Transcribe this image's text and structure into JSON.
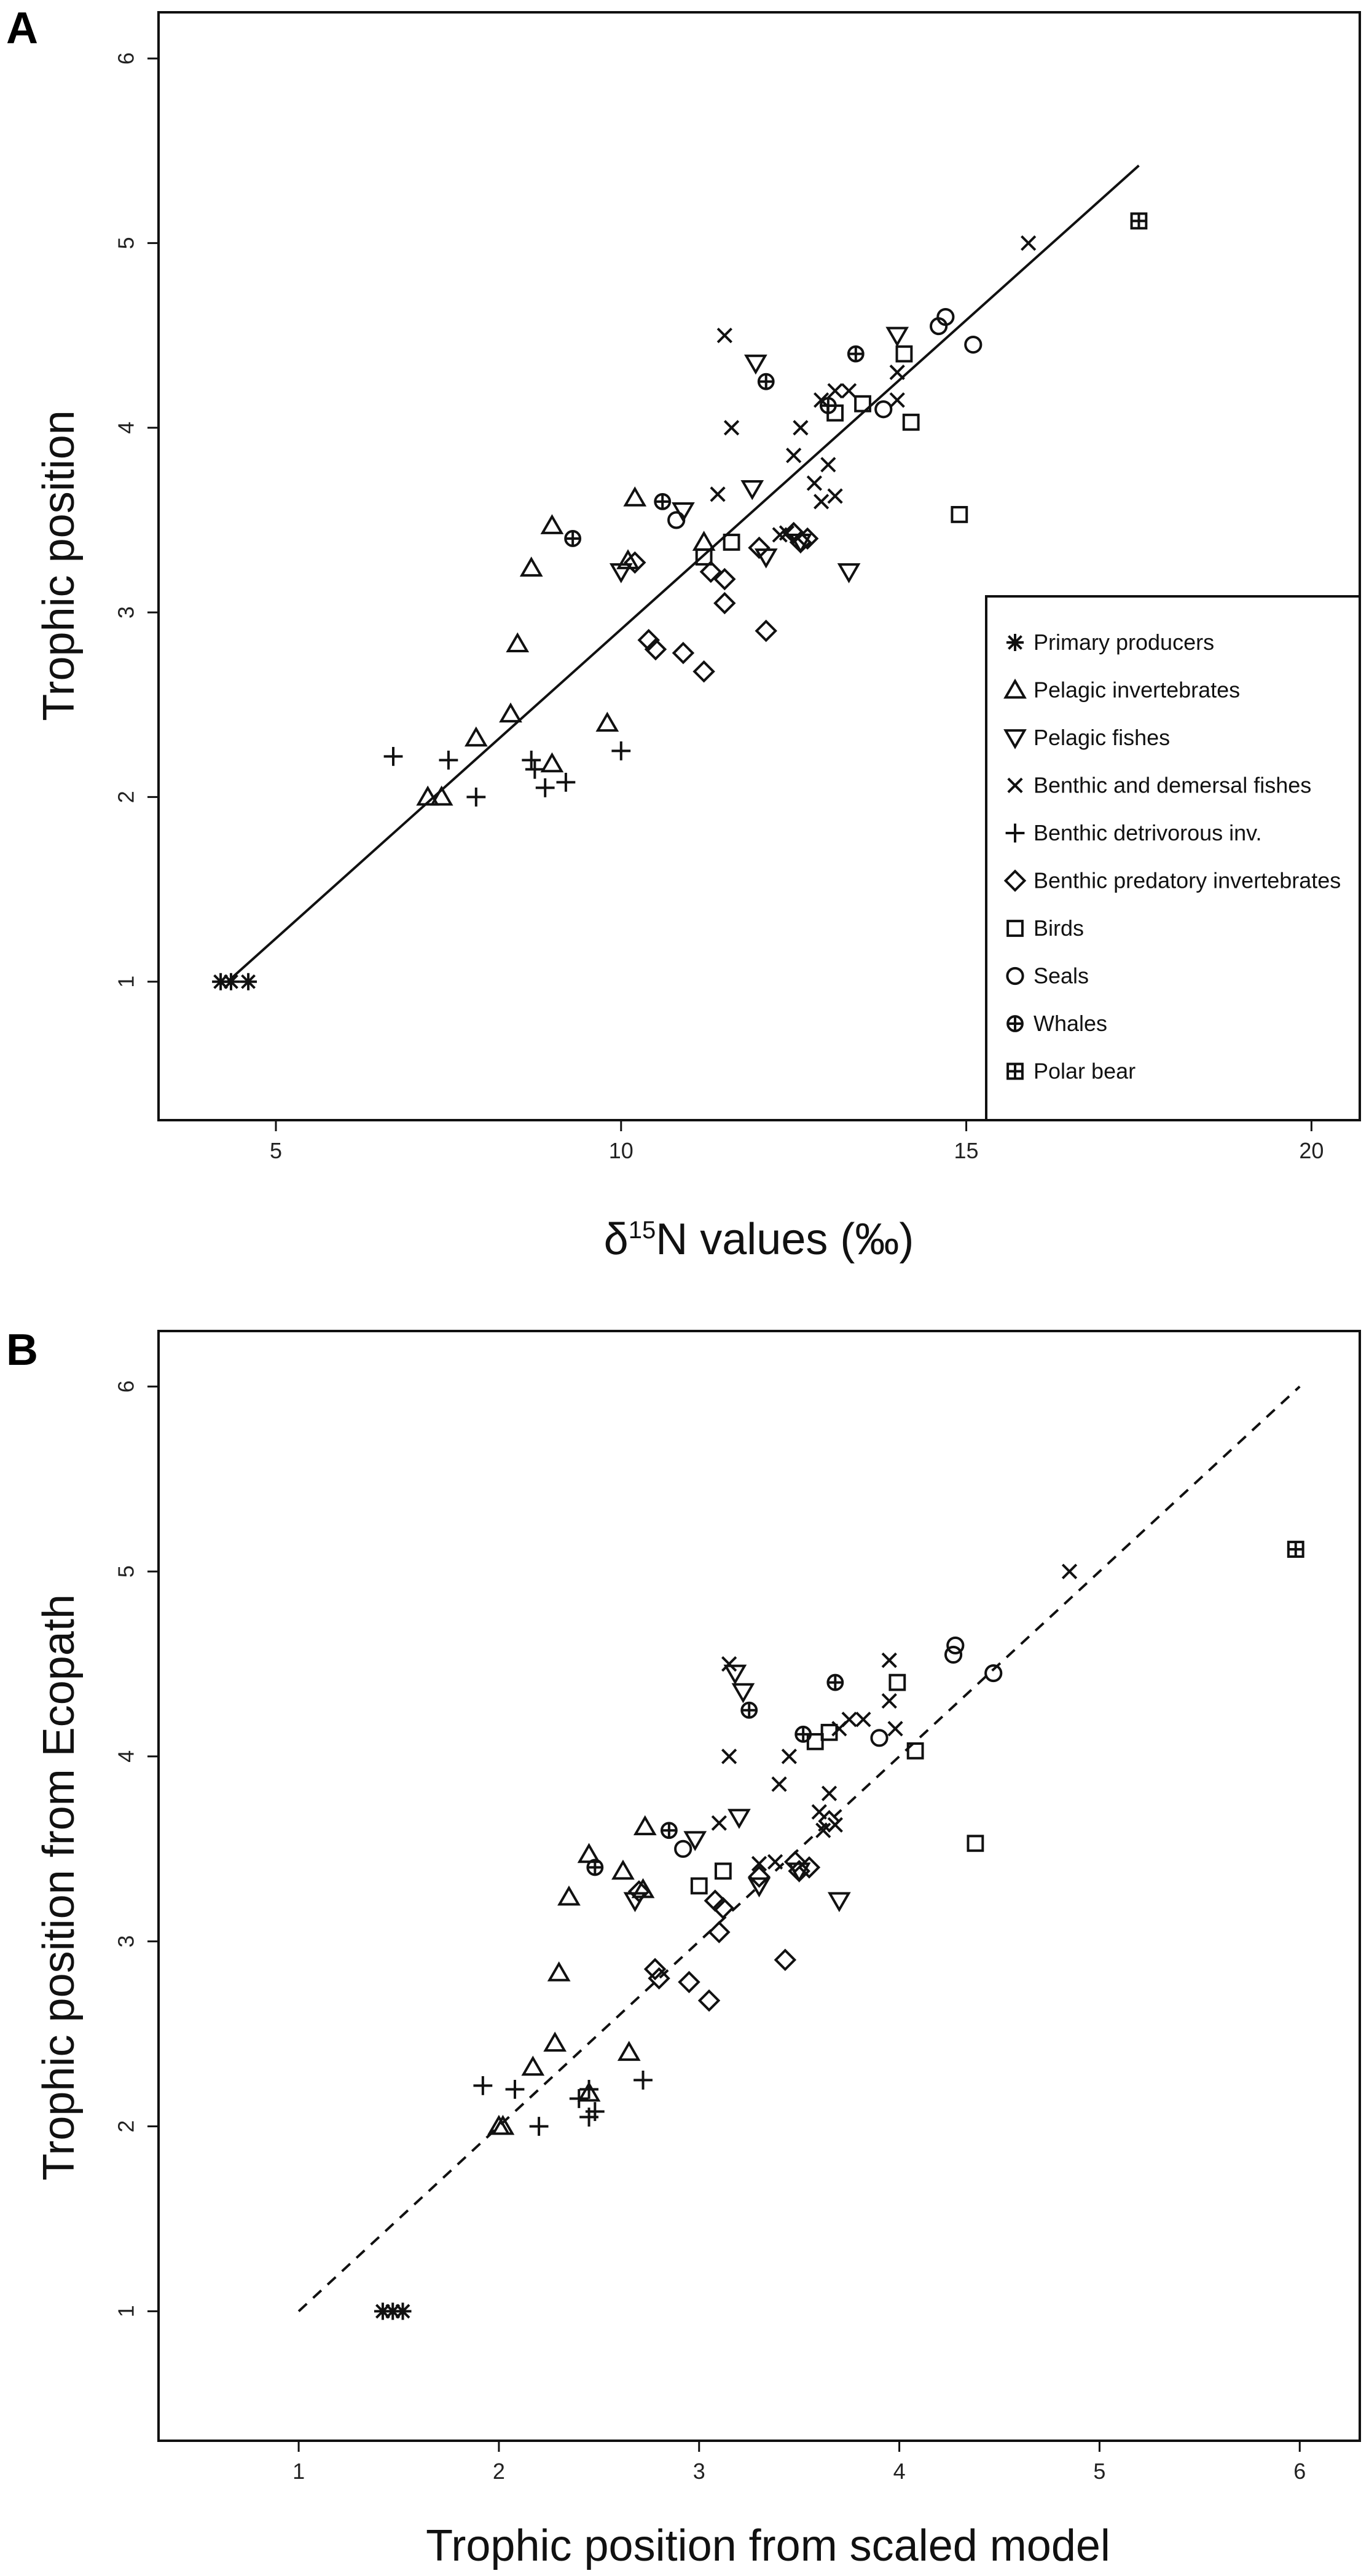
{
  "chart_data": [
    {
      "panel": "A",
      "type": "scatter",
      "xlabel_prefix": "δ",
      "xlabel_sup": "15",
      "xlabel_suffix": "N values (‰)",
      "ylabel": "Trophic position",
      "xlim": [
        3.3,
        20.7
      ],
      "ylim": [
        0.25,
        6.25
      ],
      "xticks": [
        5,
        10,
        15,
        20
      ],
      "yticks": [
        1,
        2,
        3,
        4,
        5,
        6
      ],
      "fit_line": {
        "style": "solid",
        "from": [
          4.3,
          1.0
        ],
        "to": [
          17.5,
          5.42
        ]
      },
      "legend_position": "bottom-right",
      "series": [
        {
          "name": "Primary producers",
          "marker": "asterisk",
          "points": [
            [
              4.2,
              1.0
            ],
            [
              4.35,
              1.0
            ],
            [
              4.6,
              1.0
            ]
          ]
        },
        {
          "name": "Pelagic invertebrates",
          "marker": "triangle",
          "points": [
            [
              7.2,
              2.0
            ],
            [
              7.4,
              2.0
            ],
            [
              7.9,
              2.32
            ],
            [
              8.4,
              2.45
            ],
            [
              8.5,
              2.83
            ],
            [
              8.7,
              3.24
            ],
            [
              9.0,
              3.47
            ],
            [
              9.8,
              2.4
            ],
            [
              9.0,
              2.18
            ],
            [
              10.2,
              3.62
            ],
            [
              10.1,
              3.28
            ],
            [
              11.2,
              3.38
            ]
          ]
        },
        {
          "name": "Pelagic fishes",
          "marker": "triangle-down",
          "points": [
            [
              10.0,
              3.22
            ],
            [
              10.9,
              3.55
            ],
            [
              11.9,
              3.67
            ],
            [
              11.95,
              4.35
            ],
            [
              12.6,
              3.38
            ],
            [
              13.3,
              3.22
            ],
            [
              14.0,
              4.5
            ],
            [
              12.1,
              3.3
            ]
          ]
        },
        {
          "name": "Benthic and demersal fishes",
          "marker": "x",
          "points": [
            [
              11.6,
              4.0
            ],
            [
              11.5,
              4.5
            ],
            [
              11.4,
              3.64
            ],
            [
              12.5,
              3.85
            ],
            [
              12.6,
              4.0
            ],
            [
              12.9,
              4.15
            ],
            [
              13.1,
              4.2
            ],
            [
              13.3,
              4.2
            ],
            [
              12.8,
              3.7
            ],
            [
              12.9,
              3.6
            ],
            [
              13.0,
              3.8
            ],
            [
              13.1,
              3.63
            ],
            [
              14.0,
              4.3
            ],
            [
              14.0,
              4.15
            ],
            [
              15.9,
              5.0
            ],
            [
              12.3,
              3.42
            ],
            [
              12.4,
              3.43
            ]
          ]
        },
        {
          "name": "Benthic detrivorous inv.",
          "marker": "plus",
          "points": [
            [
              6.7,
              2.22
            ],
            [
              7.5,
              2.2
            ],
            [
              7.9,
              2.0
            ],
            [
              8.7,
              2.2
            ],
            [
              8.75,
              2.15
            ],
            [
              8.9,
              2.05
            ],
            [
              9.2,
              2.08
            ],
            [
              10.0,
              2.25
            ]
          ]
        },
        {
          "name": "Benthic predatory invertebrates",
          "marker": "diamond",
          "points": [
            [
              10.4,
              2.85
            ],
            [
              10.5,
              2.8
            ],
            [
              10.9,
              2.78
            ],
            [
              11.2,
              2.68
            ],
            [
              11.3,
              3.22
            ],
            [
              11.5,
              3.05
            ],
            [
              11.5,
              3.18
            ],
            [
              12.0,
              3.35
            ],
            [
              12.1,
              2.9
            ],
            [
              12.5,
              3.43
            ],
            [
              12.6,
              3.38
            ],
            [
              12.7,
              3.4
            ],
            [
              10.2,
              3.27
            ]
          ]
        },
        {
          "name": "Birds",
          "marker": "square",
          "points": [
            [
              11.2,
              3.3
            ],
            [
              11.6,
              3.38
            ],
            [
              13.1,
              4.08
            ],
            [
              13.5,
              4.13
            ],
            [
              14.1,
              4.4
            ],
            [
              14.2,
              4.03
            ],
            [
              14.9,
              3.53
            ]
          ]
        },
        {
          "name": "Seals",
          "marker": "circle",
          "points": [
            [
              10.8,
              3.5
            ],
            [
              13.8,
              4.1
            ],
            [
              14.6,
              4.55
            ],
            [
              14.7,
              4.6
            ],
            [
              15.1,
              4.45
            ]
          ]
        },
        {
          "name": "Whales",
          "marker": "circle-plus",
          "points": [
            [
              9.3,
              3.4
            ],
            [
              10.6,
              3.6
            ],
            [
              12.1,
              4.25
            ],
            [
              13.0,
              4.12
            ],
            [
              13.4,
              4.4
            ]
          ]
        },
        {
          "name": "Polar bear",
          "marker": "square-plus",
          "points": [
            [
              17.5,
              5.12
            ]
          ]
        }
      ]
    },
    {
      "panel": "B",
      "type": "scatter",
      "xlabel": "Trophic position from scaled model",
      "ylabel": "Trophic position from Ecopath",
      "xlim": [
        0.3,
        6.3
      ],
      "ylim": [
        0.3,
        6.3
      ],
      "xticks": [
        1,
        2,
        3,
        4,
        5,
        6
      ],
      "yticks": [
        1,
        2,
        3,
        4,
        5,
        6
      ],
      "fit_line": {
        "style": "dashed",
        "from": [
          1.0,
          1.0
        ],
        "to": [
          6.0,
          6.0
        ]
      },
      "series": [
        {
          "name": "Primary producers",
          "marker": "asterisk",
          "points": [
            [
              1.42,
              1.0
            ],
            [
              1.47,
              1.0
            ],
            [
              1.52,
              1.0
            ]
          ]
        },
        {
          "name": "Pelagic invertebrates",
          "marker": "triangle",
          "points": [
            [
              2.0,
              2.0
            ],
            [
              2.02,
              2.0
            ],
            [
              2.17,
              2.32
            ],
            [
              2.28,
              2.45
            ],
            [
              2.3,
              2.83
            ],
            [
              2.35,
              3.24
            ],
            [
              2.45,
              3.47
            ],
            [
              2.65,
              2.4
            ],
            [
              2.45,
              2.18
            ],
            [
              2.73,
              3.62
            ],
            [
              2.72,
              3.28
            ],
            [
              2.62,
              3.38
            ]
          ]
        },
        {
          "name": "Pelagic fishes",
          "marker": "triangle-down",
          "points": [
            [
              2.68,
              3.22
            ],
            [
              2.98,
              3.55
            ],
            [
              3.2,
              3.67
            ],
            [
              3.22,
              4.35
            ],
            [
              3.5,
              3.38
            ],
            [
              3.7,
              3.22
            ],
            [
              3.18,
              4.45
            ],
            [
              3.3,
              3.3
            ]
          ]
        },
        {
          "name": "Benthic and demersal fishes",
          "marker": "x",
          "points": [
            [
              3.15,
              4.0
            ],
            [
              3.15,
              4.5
            ],
            [
              3.1,
              3.64
            ],
            [
              3.4,
              3.85
            ],
            [
              3.45,
              4.0
            ],
            [
              3.7,
              4.15
            ],
            [
              3.75,
              4.2
            ],
            [
              3.82,
              4.2
            ],
            [
              3.6,
              3.7
            ],
            [
              3.62,
              3.6
            ],
            [
              3.65,
              3.8
            ],
            [
              3.68,
              3.63
            ],
            [
              3.95,
              4.3
            ],
            [
              3.98,
              4.15
            ],
            [
              4.85,
              5.0
            ],
            [
              3.3,
              3.42
            ],
            [
              3.38,
              3.43
            ],
            [
              3.95,
              4.52
            ]
          ]
        },
        {
          "name": "Benthic detrivorous inv.",
          "marker": "plus",
          "points": [
            [
              1.92,
              2.22
            ],
            [
              2.08,
              2.2
            ],
            [
              2.2,
              2.0
            ],
            [
              2.45,
              2.2
            ],
            [
              2.4,
              2.15
            ],
            [
              2.45,
              2.05
            ],
            [
              2.48,
              2.08
            ],
            [
              2.72,
              2.25
            ]
          ]
        },
        {
          "name": "Benthic predatory invertebrates",
          "marker": "diamond",
          "points": [
            [
              2.78,
              2.85
            ],
            [
              2.8,
              2.8
            ],
            [
              2.95,
              2.78
            ],
            [
              3.05,
              2.68
            ],
            [
              3.08,
              3.22
            ],
            [
              3.1,
              3.05
            ],
            [
              3.12,
              3.18
            ],
            [
              3.3,
              3.35
            ],
            [
              3.43,
              2.9
            ],
            [
              3.48,
              3.43
            ],
            [
              3.5,
              3.38
            ],
            [
              3.55,
              3.4
            ],
            [
              2.7,
              3.27
            ],
            [
              3.65,
              3.65
            ]
          ]
        },
        {
          "name": "Birds",
          "marker": "square",
          "points": [
            [
              3.0,
              3.3
            ],
            [
              3.12,
              3.38
            ],
            [
              3.58,
              4.08
            ],
            [
              3.65,
              4.13
            ],
            [
              3.99,
              4.4
            ],
            [
              4.08,
              4.03
            ],
            [
              4.38,
              3.53
            ]
          ]
        },
        {
          "name": "Seals",
          "marker": "circle",
          "points": [
            [
              2.92,
              3.5
            ],
            [
              3.9,
              4.1
            ],
            [
              4.27,
              4.55
            ],
            [
              4.28,
              4.6
            ],
            [
              4.47,
              4.45
            ]
          ]
        },
        {
          "name": "Whales",
          "marker": "circle-plus",
          "points": [
            [
              2.48,
              3.4
            ],
            [
              2.85,
              3.6
            ],
            [
              3.25,
              4.25
            ],
            [
              3.52,
              4.12
            ],
            [
              3.68,
              4.4
            ]
          ]
        },
        {
          "name": "Polar bear",
          "marker": "square-plus",
          "points": [
            [
              5.98,
              5.12
            ]
          ]
        }
      ]
    }
  ]
}
